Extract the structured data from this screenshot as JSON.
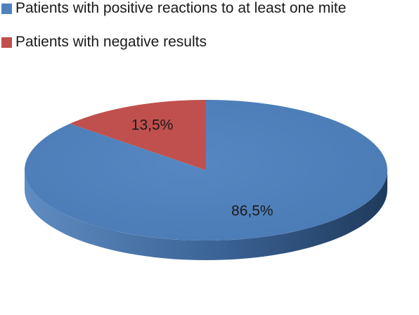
{
  "chart_data": {
    "type": "pie",
    "series": [
      {
        "name": "Patients with positive reactions to at least one mite",
        "value": 86.5,
        "label": "86,5%",
        "color": "#4f81bd"
      },
      {
        "name": "Patients with negative results",
        "value": 13.5,
        "label": "13,5%",
        "color": "#c0504d"
      }
    ],
    "legend_position": "top-left",
    "style": "3d"
  }
}
